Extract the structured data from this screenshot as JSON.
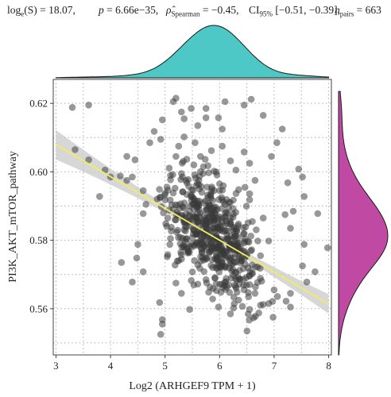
{
  "subtitle": {
    "log_prefix": "log",
    "log_sub": "e",
    "log_value": "(S) = 18.07,",
    "p_label": "p",
    "p_value": " = 6.66e−35,",
    "rho_label": "ρ̂",
    "rho_sub": "Spearman",
    "rho_value": " = −0.45,",
    "ci_label": "CI",
    "ci_sub": "95%",
    "ci_value": " [−0.51, −0.39],",
    "n_label": "n",
    "n_sub": "pairs",
    "n_value": " = 663"
  },
  "chart_data": {
    "type": "scatter",
    "xlabel": "Log2 (ARHGEF9 TPM + 1)",
    "ylabel": "PI3K_AKT_mTOR_pathway",
    "xlim": [
      2.95,
      8.05
    ],
    "ylim": [
      0.5465,
      0.627
    ],
    "x_ticks": [
      3,
      4,
      5,
      6,
      7,
      8
    ],
    "y_ticks": [
      0.56,
      0.58,
      0.6,
      0.62
    ],
    "y_tick_labels": [
      "0.56",
      "0.58",
      "0.60",
      "0.62"
    ],
    "grid": true,
    "n_points": 663,
    "points": [
      [
        3.3,
        0.6188
      ],
      [
        3.35,
        0.6065
      ],
      [
        3.6,
        0.6195
      ],
      [
        3.6,
        0.6035
      ],
      [
        3.9,
        0.6005
      ],
      [
        3.8,
        0.5928
      ],
      [
        4.0,
        0.5985
      ],
      [
        4.18,
        0.5988
      ],
      [
        4.3,
        0.6045
      ],
      [
        4.3,
        0.5975
      ],
      [
        4.4,
        0.5985
      ],
      [
        4.45,
        0.6035
      ],
      [
        4.6,
        0.5878
      ],
      [
        4.72,
        0.6085
      ],
      [
        4.8,
        0.6118
      ],
      [
        4.95,
        0.6152
      ],
      [
        4.92,
        0.6095
      ],
      [
        4.6,
        0.5945
      ],
      [
        4.65,
        0.5905
      ],
      [
        4.5,
        0.5788
      ],
      [
        4.2,
        0.5735
      ],
      [
        4.48,
        0.5748
      ],
      [
        4.4,
        0.5678
      ],
      [
        4.6,
        0.5708
      ],
      [
        4.9,
        0.5618
      ],
      [
        5.0,
        0.5918
      ],
      [
        5.05,
        0.5865
      ],
      [
        5.15,
        0.5938
      ],
      [
        5.3,
        0.5995
      ],
      [
        5.1,
        0.5805
      ],
      [
        5.05,
        0.5758
      ],
      [
        4.95,
        0.5555
      ],
      [
        4.92,
        0.5525
      ],
      [
        4.95,
        0.5568
      ],
      [
        5.2,
        0.5675
      ],
      [
        5.3,
        0.5645
      ],
      [
        5.45,
        0.5598
      ],
      [
        5.6,
        0.5672
      ],
      [
        5.8,
        0.5648
      ],
      [
        5.98,
        0.5605
      ],
      [
        6.2,
        0.5585
      ],
      [
        6.35,
        0.5625
      ],
      [
        6.05,
        0.5672
      ],
      [
        6.55,
        0.5598
      ],
      [
        6.65,
        0.5645
      ],
      [
        6.8,
        0.5612
      ],
      [
        6.9,
        0.5615
      ],
      [
        6.98,
        0.5575
      ],
      [
        5.15,
        0.6205
      ],
      [
        5.2,
        0.6215
      ],
      [
        5.3,
        0.6175
      ],
      [
        5.75,
        0.6185
      ],
      [
        5.75,
        0.6158
      ],
      [
        5.98,
        0.6158
      ],
      [
        6.1,
        0.6205
      ],
      [
        6.45,
        0.6195
      ],
      [
        6.58,
        0.6212
      ],
      [
        6.8,
        0.6165
      ],
      [
        6.95,
        0.6045
      ],
      [
        7.05,
        0.6085
      ],
      [
        7.15,
        0.6125
      ],
      [
        7.45,
        0.6008
      ],
      [
        7.52,
        0.5985
      ],
      [
        7.55,
        0.5928
      ],
      [
        7.35,
        0.5885
      ],
      [
        7.3,
        0.5835
      ],
      [
        7.2,
        0.5875
      ],
      [
        7.25,
        0.5968
      ],
      [
        7.55,
        0.5788
      ],
      [
        7.52,
        0.5725
      ],
      [
        7.6,
        0.5678
      ],
      [
        7.75,
        0.5708
      ],
      [
        7.98,
        0.5778
      ],
      [
        7.8,
        0.5878
      ],
      [
        7.3,
        0.5645
      ],
      [
        7.22,
        0.5622
      ],
      [
        7.3,
        0.5605
      ],
      [
        7.0,
        0.5655
      ],
      [
        5.4,
        0.5968
      ],
      [
        5.5,
        0.5905
      ],
      [
        5.6,
        0.5855
      ],
      [
        5.5,
        0.5808
      ],
      [
        5.4,
        0.5805
      ],
      [
        5.7,
        0.5845
      ],
      [
        5.8,
        0.5898
      ],
      [
        5.9,
        0.5945
      ],
      [
        5.7,
        0.5995
      ],
      [
        5.9,
        0.6002
      ],
      [
        6.0,
        0.5965
      ],
      [
        6.1,
        0.5905
      ],
      [
        6.2,
        0.5865
      ],
      [
        6.15,
        0.5805
      ],
      [
        6.3,
        0.5782
      ],
      [
        6.4,
        0.5748
      ],
      [
        6.5,
        0.5758
      ],
      [
        6.25,
        0.5698
      ],
      [
        5.95,
        0.5718
      ],
      [
        5.6,
        0.5728
      ],
      [
        5.3,
        0.5758
      ],
      [
        6.7,
        0.5798
      ],
      [
        6.6,
        0.5855
      ],
      [
        6.55,
        0.5918
      ],
      [
        6.8,
        0.5865
      ],
      [
        6.9,
        0.5798
      ],
      [
        6.75,
        0.5755
      ],
      [
        6.6,
        0.5705
      ],
      [
        5.2,
        0.6045
      ],
      [
        5.25,
        0.6075
      ],
      [
        5.35,
        0.6102
      ],
      [
        5.55,
        0.6085
      ],
      [
        5.65,
        0.6045
      ],
      [
        5.85,
        0.6062
      ],
      [
        6.05,
        0.6075
      ],
      [
        6.2,
        0.6032
      ],
      [
        6.3,
        0.6005
      ],
      [
        6.45,
        0.6058
      ],
      [
        6.55,
        0.6025
      ],
      [
        6.65,
        0.5975
      ],
      [
        6.05,
        0.6125
      ],
      [
        5.6,
        0.6135
      ],
      [
        5.35,
        0.6155
      ],
      [
        5.48,
        0.6185
      ],
      [
        5.85,
        0.5775
      ],
      [
        6.15,
        0.5752
      ],
      [
        5.75,
        0.5685
      ],
      [
        5.9,
        0.5825
      ],
      [
        6.35,
        0.5948
      ],
      [
        5.45,
        0.5855
      ]
    ]
  },
  "colors": {
    "points": "#3a3a3a",
    "fit_line": "#f2ec60",
    "ci_band": "#c9c9c9",
    "top_density": "#4ec7c7",
    "right_density": "#c04aa3",
    "grid": "#9a9a9a"
  }
}
